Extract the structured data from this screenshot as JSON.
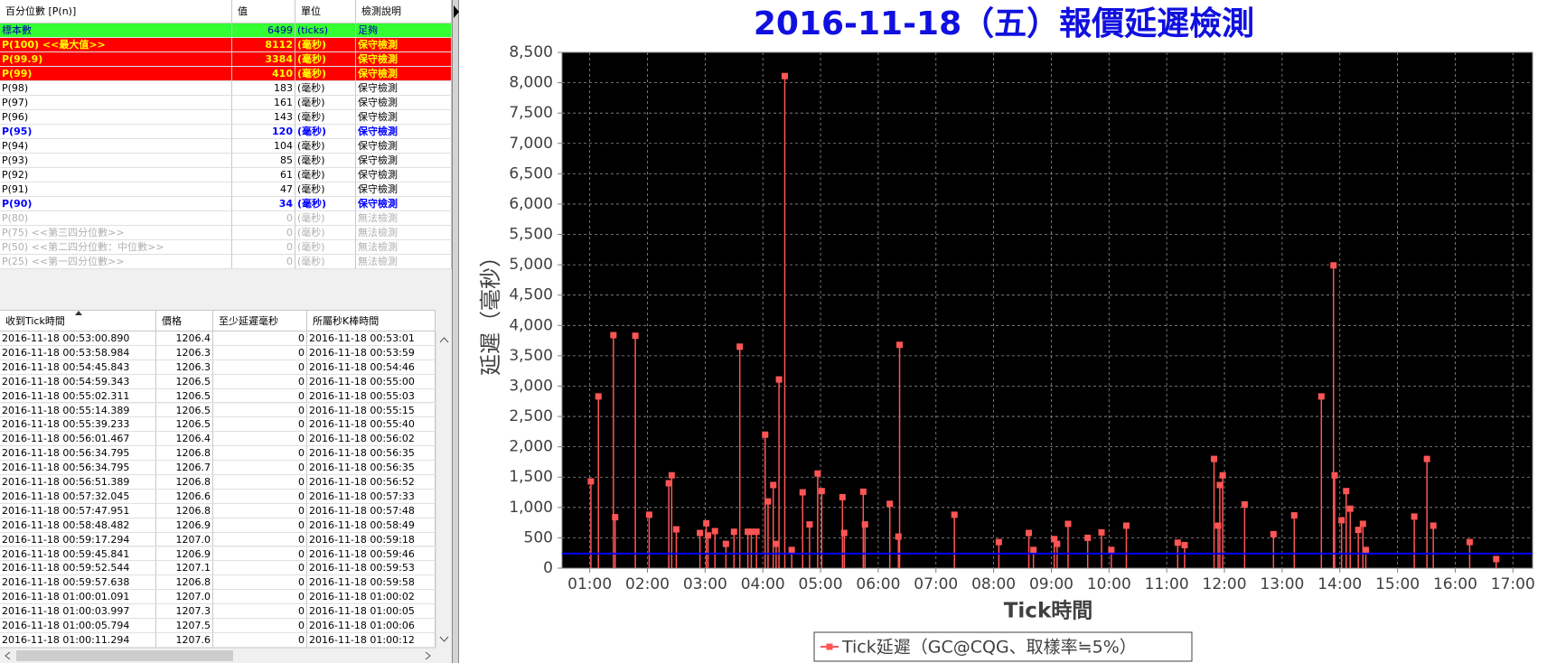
{
  "percentile_table": {
    "headers": [
      "百分位數 [P(n)]",
      "值",
      "單位",
      "檢測說明"
    ],
    "rows": [
      {
        "label": "標本數",
        "value": 6499,
        "unit": "(ticks)",
        "note": "足夠",
        "bg": "#33ff33",
        "fg": "#0000aa",
        "bold": false
      },
      {
        "label": "P(100)  <<最大值>>",
        "value": 8112,
        "unit": "(毫秒)",
        "note": "保守檢測",
        "bg": "#ff0000",
        "fg": "#ffff00",
        "bold": true
      },
      {
        "label": "P(99.9)",
        "value": 3384,
        "unit": "(毫秒)",
        "note": "保守檢測",
        "bg": "#ff0000",
        "fg": "#ffff00",
        "bold": true
      },
      {
        "label": "P(99)",
        "value": 410,
        "unit": "(毫秒)",
        "note": "保守檢測",
        "bg": "#ff0000",
        "fg": "#ffff00",
        "bold": true
      },
      {
        "label": "P(98)",
        "value": 183,
        "unit": "(毫秒)",
        "note": "保守檢測",
        "bg": "#ffffff",
        "fg": "#000000",
        "bold": false
      },
      {
        "label": "P(97)",
        "value": 161,
        "unit": "(毫秒)",
        "note": "保守檢測",
        "bg": "#ffffff",
        "fg": "#000000",
        "bold": false
      },
      {
        "label": "P(96)",
        "value": 143,
        "unit": "(毫秒)",
        "note": "保守檢測",
        "bg": "#ffffff",
        "fg": "#000000",
        "bold": false
      },
      {
        "label": "P(95)",
        "value": 120,
        "unit": "(毫秒)",
        "note": "保守檢測",
        "bg": "#ffffff",
        "fg": "#0000ff",
        "bold": true
      },
      {
        "label": "P(94)",
        "value": 104,
        "unit": "(毫秒)",
        "note": "保守檢測",
        "bg": "#ffffff",
        "fg": "#000000",
        "bold": false
      },
      {
        "label": "P(93)",
        "value": 85,
        "unit": "(毫秒)",
        "note": "保守檢測",
        "bg": "#ffffff",
        "fg": "#000000",
        "bold": false
      },
      {
        "label": "P(92)",
        "value": 61,
        "unit": "(毫秒)",
        "note": "保守檢測",
        "bg": "#ffffff",
        "fg": "#000000",
        "bold": false
      },
      {
        "label": "P(91)",
        "value": 47,
        "unit": "(毫秒)",
        "note": "保守檢測",
        "bg": "#ffffff",
        "fg": "#000000",
        "bold": false
      },
      {
        "label": "P(90)",
        "value": 34,
        "unit": "(毫秒)",
        "note": "保守檢測",
        "bg": "#ffffff",
        "fg": "#0000ff",
        "bold": true
      },
      {
        "label": "P(80)",
        "value": 0,
        "unit": "(毫秒)",
        "note": "無法檢測",
        "bg": "#ffffff",
        "fg": "#b0b0b0",
        "bold": false
      },
      {
        "label": "P(75)  <<第三四分位數>>",
        "value": 0,
        "unit": "(毫秒)",
        "note": "無法檢測",
        "bg": "#ffffff",
        "fg": "#b0b0b0",
        "bold": false
      },
      {
        "label": "P(50)  <<第二四分位數：中位數>>",
        "value": 0,
        "unit": "(毫秒)",
        "note": "無法檢測",
        "bg": "#ffffff",
        "fg": "#b0b0b0",
        "bold": false
      },
      {
        "label": "P(25)  <<第一四分位數>>",
        "value": 0,
        "unit": "(毫秒)",
        "note": "無法檢測",
        "bg": "#ffffff",
        "fg": "#b0b0b0",
        "bold": false
      }
    ]
  },
  "tick_table": {
    "headers": [
      "收到Tick時間",
      "價格",
      "至少延遲毫秒",
      "所屬秒K棒時間"
    ],
    "rows": [
      [
        "2016-11-18 00:53:00.890",
        "1206.4",
        0,
        "2016-11-18 00:53:01"
      ],
      [
        "2016-11-18 00:53:58.984",
        "1206.3",
        0,
        "2016-11-18 00:53:59"
      ],
      [
        "2016-11-18 00:54:45.843",
        "1206.3",
        0,
        "2016-11-18 00:54:46"
      ],
      [
        "2016-11-18 00:54:59.343",
        "1206.5",
        0,
        "2016-11-18 00:55:00"
      ],
      [
        "2016-11-18 00:55:02.311",
        "1206.5",
        0,
        "2016-11-18 00:55:03"
      ],
      [
        "2016-11-18 00:55:14.389",
        "1206.5",
        0,
        "2016-11-18 00:55:15"
      ],
      [
        "2016-11-18 00:55:39.233",
        "1206.5",
        0,
        "2016-11-18 00:55:40"
      ],
      [
        "2016-11-18 00:56:01.467",
        "1206.4",
        0,
        "2016-11-18 00:56:02"
      ],
      [
        "2016-11-18 00:56:34.795",
        "1206.8",
        0,
        "2016-11-18 00:56:35"
      ],
      [
        "2016-11-18 00:56:34.795",
        "1206.7",
        0,
        "2016-11-18 00:56:35"
      ],
      [
        "2016-11-18 00:56:51.389",
        "1206.8",
        0,
        "2016-11-18 00:56:52"
      ],
      [
        "2016-11-18 00:57:32.045",
        "1206.6",
        0,
        "2016-11-18 00:57:33"
      ],
      [
        "2016-11-18 00:57:47.951",
        "1206.8",
        0,
        "2016-11-18 00:57:48"
      ],
      [
        "2016-11-18 00:58:48.482",
        "1206.9",
        0,
        "2016-11-18 00:58:49"
      ],
      [
        "2016-11-18 00:59:17.294",
        "1207.0",
        0,
        "2016-11-18 00:59:18"
      ],
      [
        "2016-11-18 00:59:45.841",
        "1206.9",
        0,
        "2016-11-18 00:59:46"
      ],
      [
        "2016-11-18 00:59:52.544",
        "1207.1",
        0,
        "2016-11-18 00:59:53"
      ],
      [
        "2016-11-18 00:59:57.638",
        "1206.8",
        0,
        "2016-11-18 00:59:58"
      ],
      [
        "2016-11-18 01:00:01.091",
        "1207.0",
        0,
        "2016-11-18 01:00:02"
      ],
      [
        "2016-11-18 01:00:03.997",
        "1207.3",
        0,
        "2016-11-18 01:00:05"
      ],
      [
        "2016-11-18 01:00:05.794",
        "1207.5",
        0,
        "2016-11-18 01:00:06"
      ],
      [
        "2016-11-18 01:00:11.294",
        "1207.6",
        0,
        "2016-11-18 01:00:12"
      ]
    ]
  },
  "chart_data": {
    "type": "stem",
    "title": "2016-11-18（五）報價延遲檢測",
    "x_label": "Tick時間",
    "y_label": "延遲（毫秒）",
    "xlim": [
      0.52,
      17.34
    ],
    "xticks": [
      {
        "value": 1,
        "label": "01:00"
      },
      {
        "value": 2,
        "label": "02:00"
      },
      {
        "value": 3,
        "label": "03:00"
      },
      {
        "value": 4,
        "label": "04:00"
      },
      {
        "value": 5,
        "label": "05:00"
      },
      {
        "value": 6,
        "label": "06:00"
      },
      {
        "value": 7,
        "label": "07:00"
      },
      {
        "value": 8,
        "label": "08:00"
      },
      {
        "value": 9,
        "label": "09:00"
      },
      {
        "value": 10,
        "label": "10:00"
      },
      {
        "value": 11,
        "label": "11:00"
      },
      {
        "value": 12,
        "label": "12:00"
      },
      {
        "value": 13,
        "label": "13:00"
      },
      {
        "value": 14,
        "label": "14:00"
      },
      {
        "value": 15,
        "label": "15:00"
      },
      {
        "value": 16,
        "label": "16:00"
      },
      {
        "value": 17,
        "label": "17:00"
      }
    ],
    "ylim": [
      0,
      8500
    ],
    "yticks": [
      0,
      500,
      {
        "value": 1000,
        "label": "1,000"
      },
      {
        "value": 1500,
        "label": "1,500"
      },
      {
        "value": 2000,
        "label": "2,000"
      },
      {
        "value": 2500,
        "label": "2,500"
      },
      {
        "value": 3000,
        "label": "3,000"
      },
      {
        "value": 3500,
        "label": "3,500"
      },
      {
        "value": 4000,
        "label": "4,000"
      },
      {
        "value": 4500,
        "label": "4,500"
      },
      {
        "value": 5000,
        "label": "5,000"
      },
      {
        "value": 5500,
        "label": "5,500"
      },
      {
        "value": 6000,
        "label": "6,000"
      },
      {
        "value": 6500,
        "label": "6,500"
      },
      {
        "value": 7000,
        "label": "7,000"
      },
      {
        "value": 7500,
        "label": "7,500"
      },
      {
        "value": 8000,
        "label": "8,000"
      },
      {
        "value": 8500,
        "label": "8,500"
      }
    ],
    "grid": true,
    "background": "#000000",
    "hline": {
      "value": 240,
      "color": "#0000ff"
    },
    "series": [
      {
        "name": "Tick延遲（GC@CQG、取樣率≒5%）",
        "color": "#ff5555",
        "x": [
          1.02,
          1.15,
          1.41,
          1.44,
          1.79,
          2.03,
          2.37,
          2.42,
          2.5,
          2.91,
          3.02,
          3.05,
          3.17,
          3.36,
          3.5,
          3.6,
          3.74,
          3.8,
          3.89,
          4.04,
          4.09,
          4.18,
          4.23,
          4.28,
          4.38,
          4.5,
          4.69,
          4.81,
          4.95,
          5.02,
          5.38,
          5.41,
          5.74,
          5.77,
          6.2,
          6.35,
          6.37,
          7.32,
          8.09,
          8.61,
          8.69,
          9.05,
          9.1,
          9.29,
          9.63,
          9.87,
          10.04,
          10.3,
          11.19,
          11.31,
          11.82,
          11.89,
          11.92,
          11.97,
          12.35,
          12.85,
          13.21,
          13.68,
          13.89,
          13.91,
          14.03,
          14.11,
          14.18,
          14.32,
          14.4,
          14.45,
          15.29,
          15.51,
          15.62,
          16.25,
          16.71
        ],
        "values": [
          1430,
          2830,
          3840,
          840,
          3830,
          880,
          1400,
          1530,
          640,
          580,
          740,
          540,
          610,
          400,
          600,
          3650,
          600,
          600,
          600,
          2200,
          1100,
          1370,
          400,
          3110,
          8110,
          300,
          1250,
          720,
          1560,
          1270,
          1170,
          580,
          1260,
          720,
          1060,
          520,
          3680,
          880,
          430,
          580,
          300,
          480,
          400,
          730,
          500,
          590,
          300,
          700,
          420,
          380,
          1800,
          700,
          1370,
          1530,
          1050,
          560,
          870,
          2830,
          4990,
          1530,
          790,
          1270,
          980,
          630,
          730,
          300,
          850,
          1800,
          700,
          430,
          150
        ]
      }
    ]
  }
}
